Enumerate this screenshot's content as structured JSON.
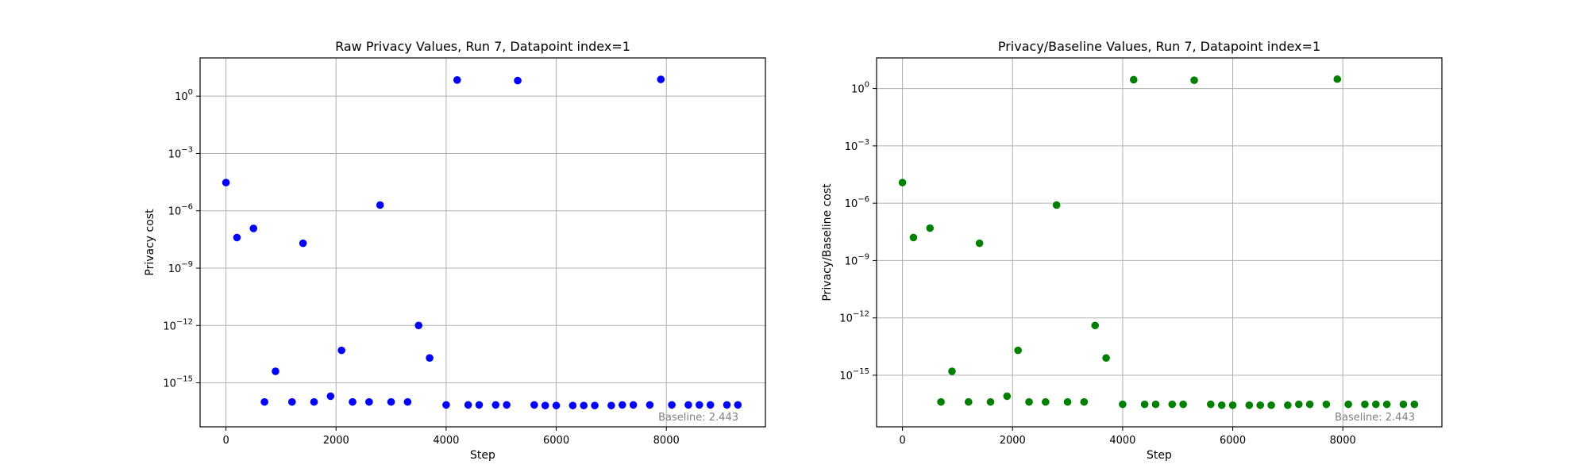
{
  "chart_data": [
    {
      "type": "scatter",
      "title": "Raw Privacy Values, Run 7, Datapoint index=1",
      "xlabel": "Step",
      "ylabel": "Privacy cost",
      "yscale": "log",
      "grid": true,
      "xlim": [
        -470,
        9800
      ],
      "ylim": [
        5e-18,
        100
      ],
      "x_ticks": [
        0,
        2000,
        4000,
        6000,
        8000
      ],
      "x_tick_labels": [
        "0",
        "2000",
        "4000",
        "6000",
        "8000"
      ],
      "y_ticks": [
        1e-15,
        1e-12,
        1e-09,
        1e-06,
        0.001,
        1
      ],
      "y_tick_labels": [
        {
          "base": "10",
          "exp": "−15"
        },
        {
          "base": "10",
          "exp": "−12"
        },
        {
          "base": "10",
          "exp": "−9"
        },
        {
          "base": "10",
          "exp": "−6"
        },
        {
          "base": "10",
          "exp": "−3"
        },
        {
          "base": "10",
          "exp": "0"
        }
      ],
      "color": "#0000ff",
      "annotation": "Baseline: 2.443",
      "x": [
        0,
        200,
        500,
        700,
        900,
        1200,
        1400,
        1600,
        1900,
        2100,
        2300,
        2600,
        2800,
        3000,
        3300,
        3500,
        3700,
        4000,
        4200,
        4400,
        4600,
        4900,
        5100,
        5300,
        5600,
        5800,
        6000,
        6300,
        6500,
        6700,
        7000,
        7200,
        7400,
        7700,
        7900,
        8100,
        8400,
        8600,
        8800,
        9100,
        9300
      ],
      "y": [
        3e-05,
        4e-08,
        1.2e-07,
        1e-16,
        4e-15,
        1e-16,
        2e-08,
        1e-16,
        2e-16,
        5e-14,
        1e-16,
        1e-16,
        2e-06,
        1e-16,
        1e-16,
        1e-12,
        2e-14,
        7e-17,
        7,
        7e-17,
        7e-17,
        7e-17,
        7e-17,
        6.5,
        7e-17,
        6.5e-17,
        6.5e-17,
        6.5e-17,
        6.5e-17,
        6.5e-17,
        6.5e-17,
        7e-17,
        7e-17,
        7e-17,
        7.5,
        7e-17,
        7e-17,
        7e-17,
        7e-17,
        7e-17,
        7e-17
      ]
    },
    {
      "type": "scatter",
      "title": "Privacy/Baseline Values, Run 7, Datapoint index=1",
      "xlabel": "Step",
      "ylabel": "Privacy/Baseline cost",
      "yscale": "log",
      "grid": true,
      "xlim": [
        -470,
        9800
      ],
      "ylim": [
        2e-18,
        40
      ],
      "x_ticks": [
        0,
        2000,
        4000,
        6000,
        8000
      ],
      "x_tick_labels": [
        "0",
        "2000",
        "4000",
        "6000",
        "8000"
      ],
      "y_ticks": [
        1e-15,
        1e-12,
        1e-09,
        1e-06,
        0.001,
        1
      ],
      "y_tick_labels": [
        {
          "base": "10",
          "exp": "−15"
        },
        {
          "base": "10",
          "exp": "−12"
        },
        {
          "base": "10",
          "exp": "−9"
        },
        {
          "base": "10",
          "exp": "−6"
        },
        {
          "base": "10",
          "exp": "−3"
        },
        {
          "base": "10",
          "exp": "0"
        }
      ],
      "color": "#008000",
      "annotation": "Baseline: 2.443",
      "x": [
        0,
        200,
        500,
        700,
        900,
        1200,
        1400,
        1600,
        1900,
        2100,
        2300,
        2600,
        2800,
        3000,
        3300,
        3500,
        3700,
        4000,
        4200,
        4400,
        4600,
        4900,
        5100,
        5300,
        5600,
        5800,
        6000,
        6300,
        6500,
        6700,
        7000,
        7200,
        7400,
        7700,
        7900,
        8100,
        8400,
        8600,
        8800,
        9100,
        9300
      ],
      "y": [
        1.2e-05,
        1.6e-08,
        5e-08,
        4e-17,
        1.6e-15,
        4e-17,
        8e-09,
        4e-17,
        8e-17,
        2e-14,
        4e-17,
        4e-17,
        8e-07,
        4e-17,
        4e-17,
        4e-13,
        8e-15,
        3e-17,
        2.9,
        3e-17,
        3e-17,
        3e-17,
        3e-17,
        2.7,
        3e-17,
        2.7e-17,
        2.7e-17,
        2.7e-17,
        2.7e-17,
        2.7e-17,
        2.7e-17,
        3e-17,
        3e-17,
        3e-17,
        3.1,
        3e-17,
        3e-17,
        3e-17,
        3e-17,
        3e-17,
        3e-17
      ]
    }
  ]
}
